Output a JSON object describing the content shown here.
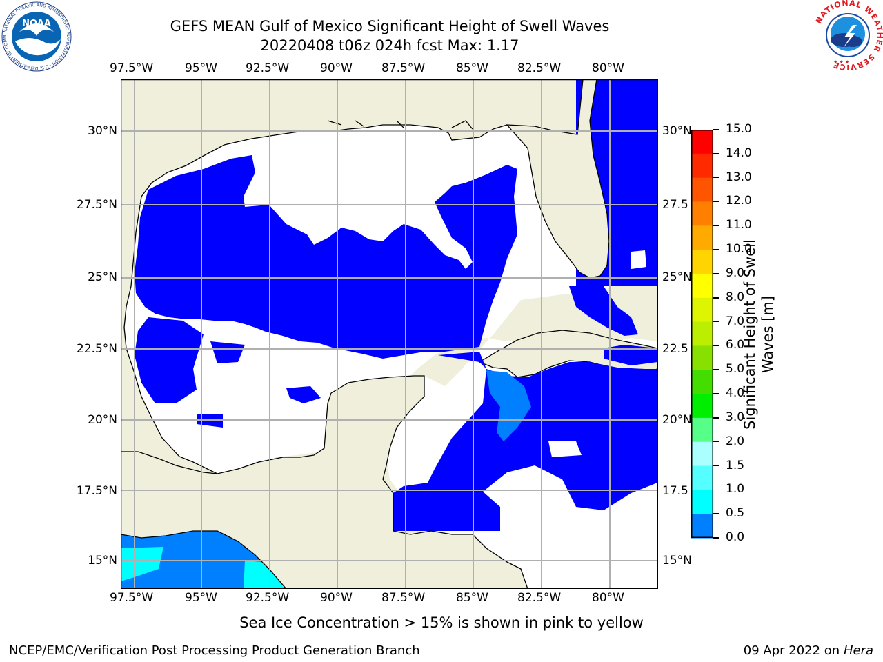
{
  "title": {
    "line1": "GEFS MEAN Gulf of Mexico Significant Height of Swell Waves",
    "line2": "20220408 t06z 024h fcst   Max: 1.17"
  },
  "map": {
    "lon_labels": [
      "97.5°W",
      "95°W",
      "92.5°W",
      "90°W",
      "87.5°W",
      "85°W",
      "82.5°W",
      "80°W"
    ],
    "lat_labels_left": [
      "30°N",
      "27.5°N",
      "25°N",
      "22.5°N",
      "20°N",
      "17.5°N",
      "15°N"
    ],
    "lat_labels_right": [
      "30°N",
      "27.5",
      "25°N",
      "22.5",
      "20°N",
      "17.5",
      "15°N"
    ]
  },
  "colorbar": {
    "label": "Significant Height of Swell Waves [m]",
    "label_line1": "Significant Height of Swell",
    "label_line2": "Waves [m]",
    "ticks": [
      "15.0",
      "14.0",
      "13.0",
      "12.0",
      "11.0",
      "10.0",
      "9.0",
      "8.0",
      "7.0",
      "6.0",
      "5.0",
      "4.0",
      "3.0",
      "2.0",
      "1.5",
      "1.0",
      "0.5",
      "0.0"
    ],
    "colors": [
      "#ff0000",
      "#ff2a00",
      "#ff5500",
      "#ff8000",
      "#ffaa00",
      "#ffd400",
      "#ffff00",
      "#ddf500",
      "#bbee00",
      "#88e000",
      "#44dd00",
      "#00ee00",
      "#55ff88",
      "#aaffff",
      "#55ffff",
      "#00ffff",
      "#0080ff",
      "#0000ff"
    ]
  },
  "note": "Sea Ice Concentration > 15% is shown in pink to yellow",
  "footer": {
    "left": "NCEP/EMC/Verification Post Processing Product Generation Branch",
    "date": "09 Apr 2022 on ",
    "host": "Hera"
  },
  "logos": {
    "noaa": "NOAA",
    "noaa_ring": "NATIONAL OCEANIC AND ATMOSPHERIC ADMINISTRATION · U.S. DEPARTMENT OF COMMERCE",
    "nws_ring": "NATIONAL WEATHER SERVICE"
  }
}
